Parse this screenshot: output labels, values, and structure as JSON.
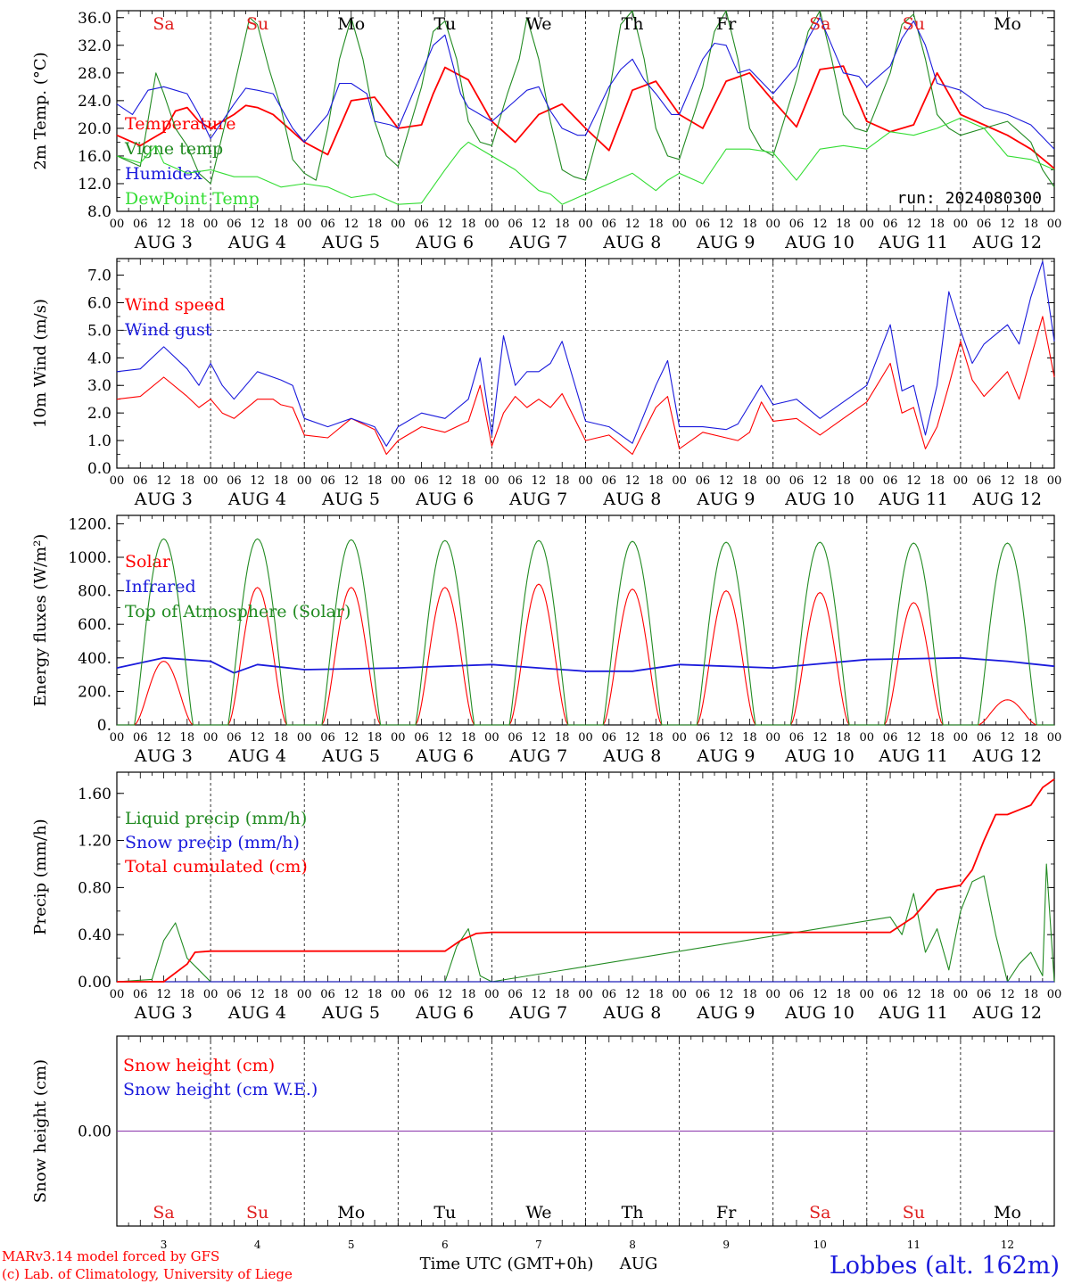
{
  "weekdays": [
    {
      "label": "Sa",
      "color": "#e02020"
    },
    {
      "label": "Su",
      "color": "#e02020"
    },
    {
      "label": "Mo",
      "color": "#000000"
    },
    {
      "label": "Tu",
      "color": "#000000"
    },
    {
      "label": "We",
      "color": "#000000"
    },
    {
      "label": "Th",
      "color": "#000000"
    },
    {
      "label": "Fr",
      "color": "#000000"
    },
    {
      "label": "Sa",
      "color": "#e02020"
    },
    {
      "label": "Su",
      "color": "#e02020"
    },
    {
      "label": "Mo",
      "color": "#000000"
    }
  ],
  "date_labels": [
    "AUG 3",
    "AUG 4",
    "AUG 5",
    "AUG 6",
    "AUG 7",
    "AUG 8",
    "AUG 9",
    "AUG 10",
    "AUG 11",
    "AUG 12"
  ],
  "hour_labels": [
    "00",
    "06",
    "12",
    "18"
  ],
  "day_numbers": [
    "3",
    "4",
    "5",
    "6",
    "7",
    "8",
    "9",
    "10",
    "11",
    "12"
  ],
  "run_label": "run: 2024080300",
  "xlabel": "Time UTC (GMT+0h)",
  "month_label": "AUG",
  "footer_model": "MARv3.14 model forced by GFS",
  "footer_lab": "(c) Lab. of Climatology, University of Liege",
  "station": "Lobbes (alt. 162m)",
  "colors": {
    "red": "#ff0000",
    "green": "#228b22",
    "blue": "#1a1adc",
    "lightgreen": "#33dd33",
    "purple": "#8833aa"
  },
  "chart_data": [
    {
      "id": "temperature",
      "type": "line",
      "ylabel": "2m Temp. (°C)",
      "ylim": [
        8,
        37
      ],
      "yticks": [
        "36.0",
        "32.0",
        "28.0",
        "24.0",
        "20.0",
        "16.0",
        "12.0",
        "8.0"
      ],
      "ytick_values": [
        36,
        32,
        28,
        24,
        20,
        16,
        12,
        8
      ],
      "x_unit": "hours since AUG 3 00 UTC",
      "series": [
        {
          "name": "Temperature",
          "color": "#ff0000",
          "x": [
            0,
            6,
            9,
            12,
            15,
            18,
            21,
            24,
            30,
            33,
            36,
            40,
            45,
            48,
            54,
            60,
            66,
            72,
            78,
            81,
            84,
            90,
            96,
            102,
            108,
            114,
            120,
            126,
            132,
            138,
            144,
            150,
            156,
            162,
            168,
            174,
            180,
            186,
            192,
            198,
            204,
            210,
            216,
            222,
            228,
            234,
            240
          ],
          "y": [
            19,
            17.5,
            18.5,
            19.5,
            22.5,
            23,
            21,
            20,
            22,
            23.3,
            23,
            22,
            19.5,
            18,
            16.2,
            24,
            24.5,
            20,
            20.5,
            25,
            28.8,
            27,
            21,
            18,
            22,
            23.5,
            20,
            16.8,
            25.5,
            26.8,
            22,
            20,
            26.8,
            28,
            24,
            20.2,
            28.5,
            29,
            21,
            19.5,
            20.5,
            28,
            22,
            20.5,
            19,
            17,
            14.2
          ]
        },
        {
          "name": "Vigne temp",
          "color": "#228b22",
          "x": [
            0,
            6,
            10,
            12,
            15,
            18,
            21,
            24,
            30,
            34,
            36,
            39,
            42,
            45,
            48,
            51,
            54,
            57,
            60,
            63,
            66,
            69,
            72,
            78,
            81,
            84,
            87,
            90,
            93,
            96,
            100,
            103,
            105,
            108,
            111,
            114,
            117,
            120,
            126,
            129,
            132,
            135,
            138,
            141,
            144,
            150,
            153,
            156,
            159,
            162,
            165,
            168,
            174,
            177,
            180,
            183,
            186,
            189,
            192,
            198,
            201,
            204,
            207,
            210,
            213,
            216,
            222,
            228,
            234,
            237,
            240
          ],
          "y": [
            16,
            14.5,
            28,
            25,
            20,
            17.5,
            13.5,
            12,
            26,
            36,
            35,
            28.5,
            23,
            15.5,
            13.5,
            12.5,
            20,
            30,
            36,
            30,
            21,
            16,
            14.5,
            26,
            34,
            35.5,
            30,
            21,
            18,
            17.5,
            25,
            30,
            36,
            30,
            21,
            14,
            13,
            12.5,
            25,
            35,
            37,
            30,
            20,
            16,
            15.5,
            26,
            34,
            37,
            30,
            20,
            17,
            16,
            27,
            34,
            37,
            30,
            22,
            20,
            19.5,
            28,
            35,
            36.5,
            30,
            22,
            20,
            19,
            20,
            21,
            18,
            14,
            11.5
          ]
        },
        {
          "name": "Humidex",
          "color": "#1a1adc",
          "x": [
            0,
            4,
            8,
            12,
            15,
            18,
            21,
            24,
            30,
            33,
            36,
            40,
            45,
            48,
            54,
            57,
            60,
            64,
            66,
            70,
            72,
            78,
            81,
            84,
            88,
            90,
            96,
            102,
            105,
            108,
            111,
            114,
            118,
            120,
            126,
            129,
            132,
            135,
            138,
            142,
            144,
            150,
            153,
            156,
            159,
            162,
            168,
            174,
            177,
            180,
            183,
            186,
            190,
            192,
            198,
            201,
            204,
            207,
            210,
            216,
            222,
            228,
            234,
            240
          ],
          "y": [
            23.5,
            22,
            25.5,
            26,
            25.5,
            25,
            22,
            18.5,
            23.5,
            25.8,
            25.5,
            25,
            20,
            18,
            22,
            26.5,
            26.5,
            25,
            21,
            20.5,
            20,
            28,
            32,
            33.5,
            25,
            23,
            21,
            24,
            25.5,
            26,
            22.5,
            20,
            19,
            19,
            26,
            28.5,
            30,
            27,
            25,
            22,
            22,
            30,
            32.3,
            32,
            28,
            28.5,
            25,
            29,
            33,
            36,
            32,
            28,
            27.5,
            26,
            29,
            33,
            35.5,
            32,
            26.5,
            25.5,
            23,
            22,
            20.5,
            17
          ]
        },
        {
          "name": "DewPoint Temp",
          "color": "#33dd33",
          "x": [
            0,
            6,
            10,
            12,
            18,
            24,
            30,
            36,
            42,
            48,
            54,
            60,
            66,
            72,
            78,
            84,
            88,
            90,
            96,
            102,
            108,
            111,
            114,
            118,
            120,
            126,
            132,
            138,
            141,
            144,
            150,
            156,
            162,
            168,
            174,
            180,
            186,
            192,
            198,
            204,
            210,
            216,
            222,
            228,
            234,
            240
          ],
          "y": [
            16,
            15,
            17.5,
            15,
            13.5,
            14,
            13,
            13,
            11.5,
            12,
            11.5,
            10,
            10.5,
            9,
            9.2,
            14,
            17,
            18,
            16,
            14,
            11,
            10.5,
            9,
            10,
            10.5,
            12,
            13.5,
            11,
            12.5,
            13.5,
            12,
            17,
            17,
            16.5,
            12.5,
            17,
            17.5,
            17,
            19.5,
            19,
            20,
            21.5,
            20,
            16,
            15.5,
            14
          ]
        }
      ]
    },
    {
      "id": "wind",
      "type": "line",
      "ylabel": "10m Wind (m/s)",
      "ylim": [
        0,
        7.6
      ],
      "yticks": [
        "7.0",
        "6.0",
        "5.0",
        "4.0",
        "3.0",
        "2.0",
        "1.0",
        "0.0"
      ],
      "ytick_values": [
        7,
        6,
        5,
        4,
        3,
        2,
        1,
        0
      ],
      "reference_line": 5.0,
      "x_unit": "hours since AUG 3 00 UTC",
      "series": [
        {
          "name": "Wind speed",
          "color": "#ff0000",
          "x": [
            0,
            6,
            12,
            18,
            21,
            24,
            27,
            30,
            36,
            40,
            42,
            45,
            48,
            54,
            60,
            66,
            69,
            72,
            78,
            84,
            90,
            93,
            96,
            99,
            102,
            105,
            108,
            111,
            114,
            120,
            126,
            132,
            138,
            141,
            144,
            150,
            156,
            159,
            162,
            165,
            168,
            174,
            180,
            186,
            192,
            198,
            201,
            204,
            207,
            210,
            213,
            216,
            219,
            222,
            228,
            231,
            234,
            237,
            240
          ],
          "y": [
            2.5,
            2.6,
            3.3,
            2.6,
            2.2,
            2.5,
            2,
            1.8,
            2.5,
            2.5,
            2.3,
            2.2,
            1.2,
            1.1,
            1.8,
            1.4,
            0.5,
            1.0,
            1.5,
            1.3,
            1.7,
            3,
            0.8,
            2,
            2.6,
            2.2,
            2.5,
            2.2,
            2.7,
            1.0,
            1.2,
            0.5,
            2.2,
            2.6,
            0.7,
            1.3,
            1.1,
            1.0,
            1.3,
            2.4,
            1.7,
            1.8,
            1.2,
            1.8,
            2.4,
            3.8,
            2.0,
            2.2,
            0.7,
            1.5,
            3,
            4.6,
            3.2,
            2.6,
            3.5,
            2.5,
            4.0,
            5.5,
            3.3
          ]
        },
        {
          "name": "Wind gust",
          "color": "#1a1adc",
          "x": [
            0,
            6,
            12,
            18,
            21,
            24,
            27,
            30,
            36,
            42,
            45,
            48,
            54,
            60,
            66,
            69,
            72,
            78,
            84,
            90,
            93,
            96,
            99,
            102,
            105,
            108,
            111,
            114,
            120,
            126,
            132,
            138,
            141,
            144,
            150,
            156,
            159,
            162,
            165,
            168,
            174,
            180,
            186,
            192,
            198,
            201,
            204,
            207,
            210,
            213,
            216,
            219,
            222,
            228,
            231,
            234,
            237,
            240
          ],
          "y": [
            3.5,
            3.6,
            4.4,
            3.6,
            3.0,
            3.8,
            3.0,
            2.5,
            3.5,
            3.2,
            3.0,
            1.8,
            1.5,
            1.8,
            1.5,
            0.8,
            1.5,
            2.0,
            1.8,
            2.5,
            4.0,
            1.2,
            4.8,
            3.0,
            3.5,
            3.5,
            3.8,
            4.6,
            1.7,
            1.5,
            0.9,
            3.0,
            3.9,
            1.5,
            1.5,
            1.4,
            1.6,
            2.3,
            3.0,
            2.3,
            2.5,
            1.8,
            2.4,
            3.0,
            5.2,
            2.8,
            3.0,
            1.2,
            3.0,
            6.4,
            5.0,
            3.8,
            4.5,
            5.2,
            4.5,
            6.2,
            7.5,
            4.6
          ]
        }
      ]
    },
    {
      "id": "energy",
      "type": "line",
      "ylabel": "Energy fluxes (W/m²)",
      "ylim": [
        0,
        1250
      ],
      "yticks": [
        "1200.",
        "1000.",
        "800.",
        "600.",
        "400.",
        "200.",
        "0."
      ],
      "ytick_values": [
        1200,
        1000,
        800,
        600,
        400,
        200,
        0
      ],
      "x_unit": "hours since AUG 3 00 UTC",
      "diurnal": {
        "sunrise_h": 4.5,
        "sunset_h": 19.5,
        "toa_peak": [
          1110,
          1110,
          1105,
          1100,
          1100,
          1095,
          1090,
          1090,
          1085,
          1085
        ],
        "solar_peak": [
          380,
          820,
          820,
          820,
          840,
          810,
          800,
          790,
          730,
          150
        ]
      },
      "series": [
        {
          "name": "Solar",
          "color": "#ff0000"
        },
        {
          "name": "Infrared",
          "color": "#1a1adc",
          "x": [
            0,
            12,
            24,
            30,
            36,
            48,
            72,
            96,
            108,
            120,
            132,
            144,
            168,
            192,
            216,
            228,
            240
          ],
          "y": [
            340,
            400,
            380,
            310,
            360,
            330,
            340,
            360,
            340,
            320,
            320,
            360,
            340,
            390,
            400,
            380,
            350
          ]
        },
        {
          "name": "Top of Atmosphere (Solar)",
          "color": "#228b22"
        }
      ]
    },
    {
      "id": "precip",
      "type": "line",
      "ylabel": "Precip (mm/h)",
      "ylim": [
        0,
        1.78
      ],
      "yticks": [
        "1.60",
        "1.20",
        "0.80",
        "0.40",
        "0.00"
      ],
      "ytick_values": [
        1.6,
        1.2,
        0.8,
        0.4,
        0
      ],
      "x_unit": "hours since AUG 3 00 UTC",
      "series": [
        {
          "name": "Liquid precip (mm/h)",
          "color": "#228b22",
          "x": [
            0,
            9,
            12,
            15,
            18,
            21,
            24,
            84,
            87,
            90,
            93,
            96,
            198,
            201,
            204,
            207,
            210,
            213,
            216,
            219,
            222,
            225,
            228,
            231,
            234,
            237,
            238,
            240
          ],
          "y": [
            0,
            0.02,
            0.35,
            0.5,
            0.2,
            0.1,
            0,
            0,
            0.3,
            0.45,
            0.05,
            0,
            0.55,
            0.4,
            0.75,
            0.25,
            0.45,
            0.1,
            0.6,
            0.85,
            0.9,
            0.4,
            0,
            0.15,
            0.25,
            0.05,
            1.0,
            0
          ]
        },
        {
          "name": "Snow precip (mm/h)",
          "color": "#1a1adc",
          "x": [
            0,
            240
          ],
          "y": [
            0,
            0
          ]
        },
        {
          "name": "Total cumulated (cm)",
          "color": "#ff0000",
          "x": [
            0,
            12,
            18,
            20,
            24,
            84,
            88,
            92,
            96,
            198,
            204,
            210,
            213,
            216,
            219,
            222,
            225,
            228,
            234,
            237,
            240
          ],
          "y": [
            0,
            0,
            0.15,
            0.25,
            0.26,
            0.26,
            0.35,
            0.41,
            0.42,
            0.42,
            0.55,
            0.78,
            0.8,
            0.82,
            0.95,
            1.2,
            1.42,
            1.42,
            1.5,
            1.65,
            1.72
          ]
        }
      ]
    },
    {
      "id": "snow",
      "type": "line",
      "ylabel": "Snow height (cm)",
      "ylim": [
        -1,
        1
      ],
      "yticks": [
        "0.00"
      ],
      "ytick_values": [
        0
      ],
      "x_unit": "hours since AUG 3 00 UTC",
      "series": [
        {
          "name": "Snow height (cm)",
          "color": "#ff0000",
          "x": [
            0,
            240
          ],
          "y": [
            0,
            0
          ]
        },
        {
          "name": "Snow height (cm W.E.)",
          "color": "#1a1adc",
          "x": [
            0,
            240
          ],
          "y": [
            0,
            0
          ]
        }
      ]
    }
  ]
}
